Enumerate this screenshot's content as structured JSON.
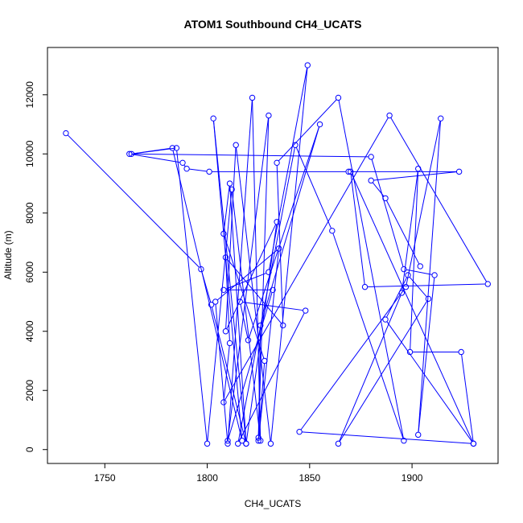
{
  "chart_data": {
    "type": "scatter",
    "title": "ATOM1 Southbound CH4_UCATS",
    "xlabel": "CH4_UCATS",
    "ylabel": "Altitude (m)",
    "xlim": [
      1722,
      1942
    ],
    "ylim": [
      -470,
      13600
    ],
    "x_ticks": [
      1750,
      1800,
      1850,
      1900
    ],
    "x_tick_labels": [
      "1750",
      "1800",
      "1850",
      "1900"
    ],
    "y_ticks": [
      0,
      2000,
      4000,
      6000,
      8000,
      10000,
      12000
    ],
    "y_tick_labels": [
      "0",
      "2000",
      "4000",
      "6000",
      "8000",
      "10000",
      "12000"
    ],
    "grid": false,
    "legend": "none",
    "style": {
      "line_color": "#0000ff",
      "marker": "open-circle",
      "connect_points": true
    },
    "series": [
      {
        "points": [
          [
            1731,
            10700
          ],
          [
            1797,
            6100
          ],
          [
            1802,
            4900
          ],
          [
            1819,
            200
          ],
          [
            1811,
            9000
          ],
          [
            1808,
            7300
          ],
          [
            1828,
            3000
          ],
          [
            1825,
            300
          ],
          [
            1835,
            6800
          ],
          [
            1804,
            5000
          ],
          [
            1810,
            200
          ],
          [
            1822,
            11900
          ],
          [
            1826,
            300
          ],
          [
            1812,
            8800
          ],
          [
            1800,
            200
          ],
          [
            1785,
            10200
          ],
          [
            1763,
            10000
          ],
          [
            1783,
            10200
          ],
          [
            1817,
            300
          ],
          [
            1803,
            11200
          ],
          [
            1819,
            200
          ],
          [
            1834,
            7700
          ],
          [
            1809,
            4000
          ],
          [
            1814,
            10300
          ],
          [
            1831,
            200
          ],
          [
            1849,
            13000
          ],
          [
            1830,
            6000
          ],
          [
            1808,
            5400
          ],
          [
            1832,
            5400
          ],
          [
            1810,
            300
          ],
          [
            1830,
            11300
          ],
          [
            1825,
            400
          ],
          [
            1826,
            4200
          ],
          [
            1855,
            11000
          ],
          [
            1820,
            3700
          ],
          [
            1816,
            5000
          ],
          [
            1848,
            4700
          ],
          [
            1815,
            200
          ],
          [
            1843,
            10300
          ],
          [
            1861,
            7400
          ],
          [
            1896,
            300
          ],
          [
            1864,
            11900
          ],
          [
            1834,
            9700
          ],
          [
            1837,
            4200
          ],
          [
            1809,
            6500
          ],
          [
            1811,
            3600
          ],
          [
            1808,
            1600
          ],
          [
            1889,
            11300
          ],
          [
            1937,
            5600
          ],
          [
            1877,
            5500
          ],
          [
            1870,
            9400
          ],
          [
            1930,
            200
          ],
          [
            1887,
            4400
          ],
          [
            1898,
            5900
          ],
          [
            1908,
            5100
          ],
          [
            1864,
            200
          ],
          [
            1895,
            5300
          ],
          [
            1903,
            9500
          ],
          [
            1899,
            3300
          ],
          [
            1924,
            3300
          ],
          [
            1930,
            200
          ],
          [
            1845,
            600
          ],
          [
            1897,
            5500
          ],
          [
            1914,
            11200
          ],
          [
            1903,
            500
          ],
          [
            1911,
            5900
          ],
          [
            1896,
            6100
          ],
          [
            1880,
            9900
          ],
          [
            1762,
            10000
          ],
          [
            1788,
            9700
          ],
          [
            1790,
            9500
          ],
          [
            1801,
            9400
          ],
          [
            1869,
            9400
          ],
          [
            1923,
            9400
          ],
          [
            1880,
            9100
          ],
          [
            1887,
            8500
          ],
          [
            1904,
            6200
          ]
        ]
      }
    ]
  }
}
